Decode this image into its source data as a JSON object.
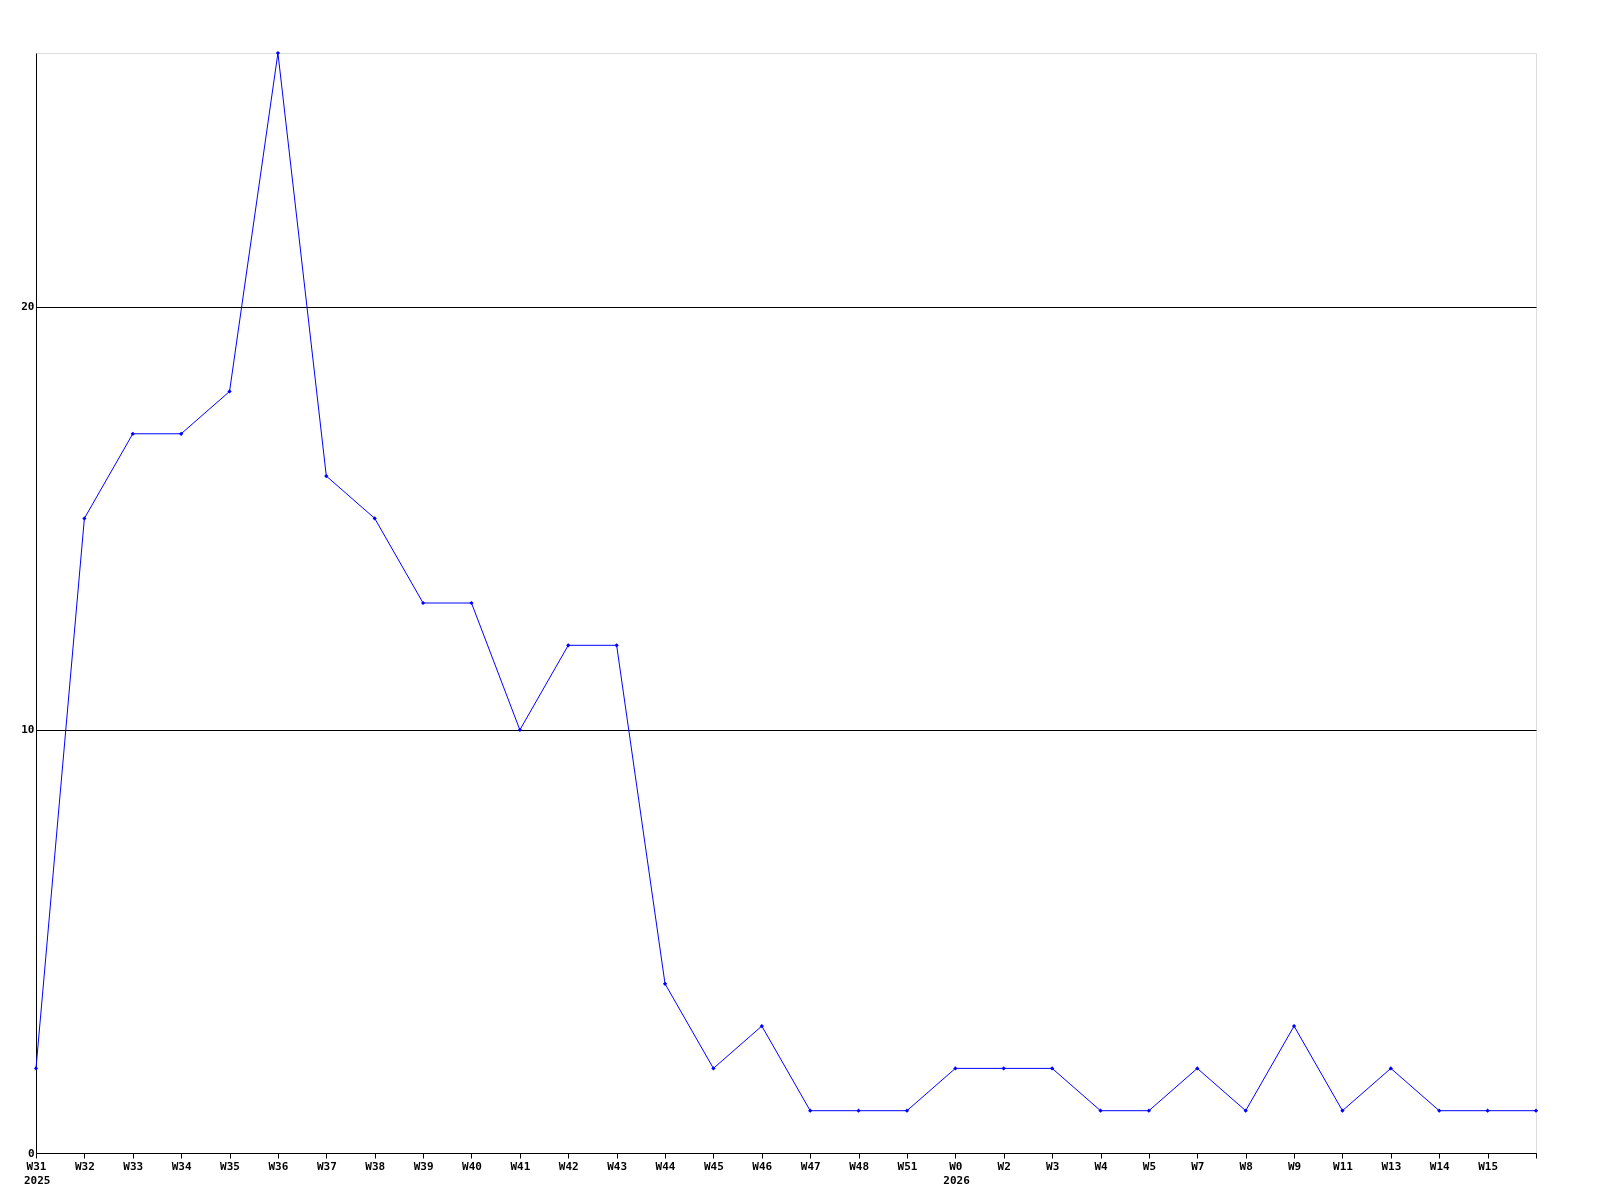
{
  "chart_data": {
    "type": "line",
    "categories": [
      "W31",
      "W32",
      "W33",
      "W34",
      "W35",
      "W36",
      "W37",
      "W38",
      "W39",
      "W40",
      "W41",
      "W42",
      "W43",
      "W44",
      "W45",
      "W46",
      "W47",
      "W48",
      "W51",
      "W0",
      "W2",
      "W3",
      "W4",
      "W5",
      "W7",
      "W8",
      "W9",
      "W11",
      "W13",
      "W14",
      "W15",
      null
    ],
    "series": [
      {
        "color": "#0000ff",
        "values": [
          2,
          15,
          17,
          17,
          18,
          26,
          16,
          15,
          13,
          13,
          10,
          12,
          12,
          4,
          2,
          3,
          1,
          1,
          1,
          2,
          2,
          2,
          1,
          1,
          2,
          1,
          3,
          1,
          2,
          1,
          1,
          1
        ]
      }
    ],
    "ylim": [
      0,
      26
    ],
    "yticks": [
      0,
      10,
      20
    ],
    "grid": "y",
    "marker": "diamond",
    "line_style": "solid",
    "annotations": [
      "2025",
      "2026"
    ]
  }
}
